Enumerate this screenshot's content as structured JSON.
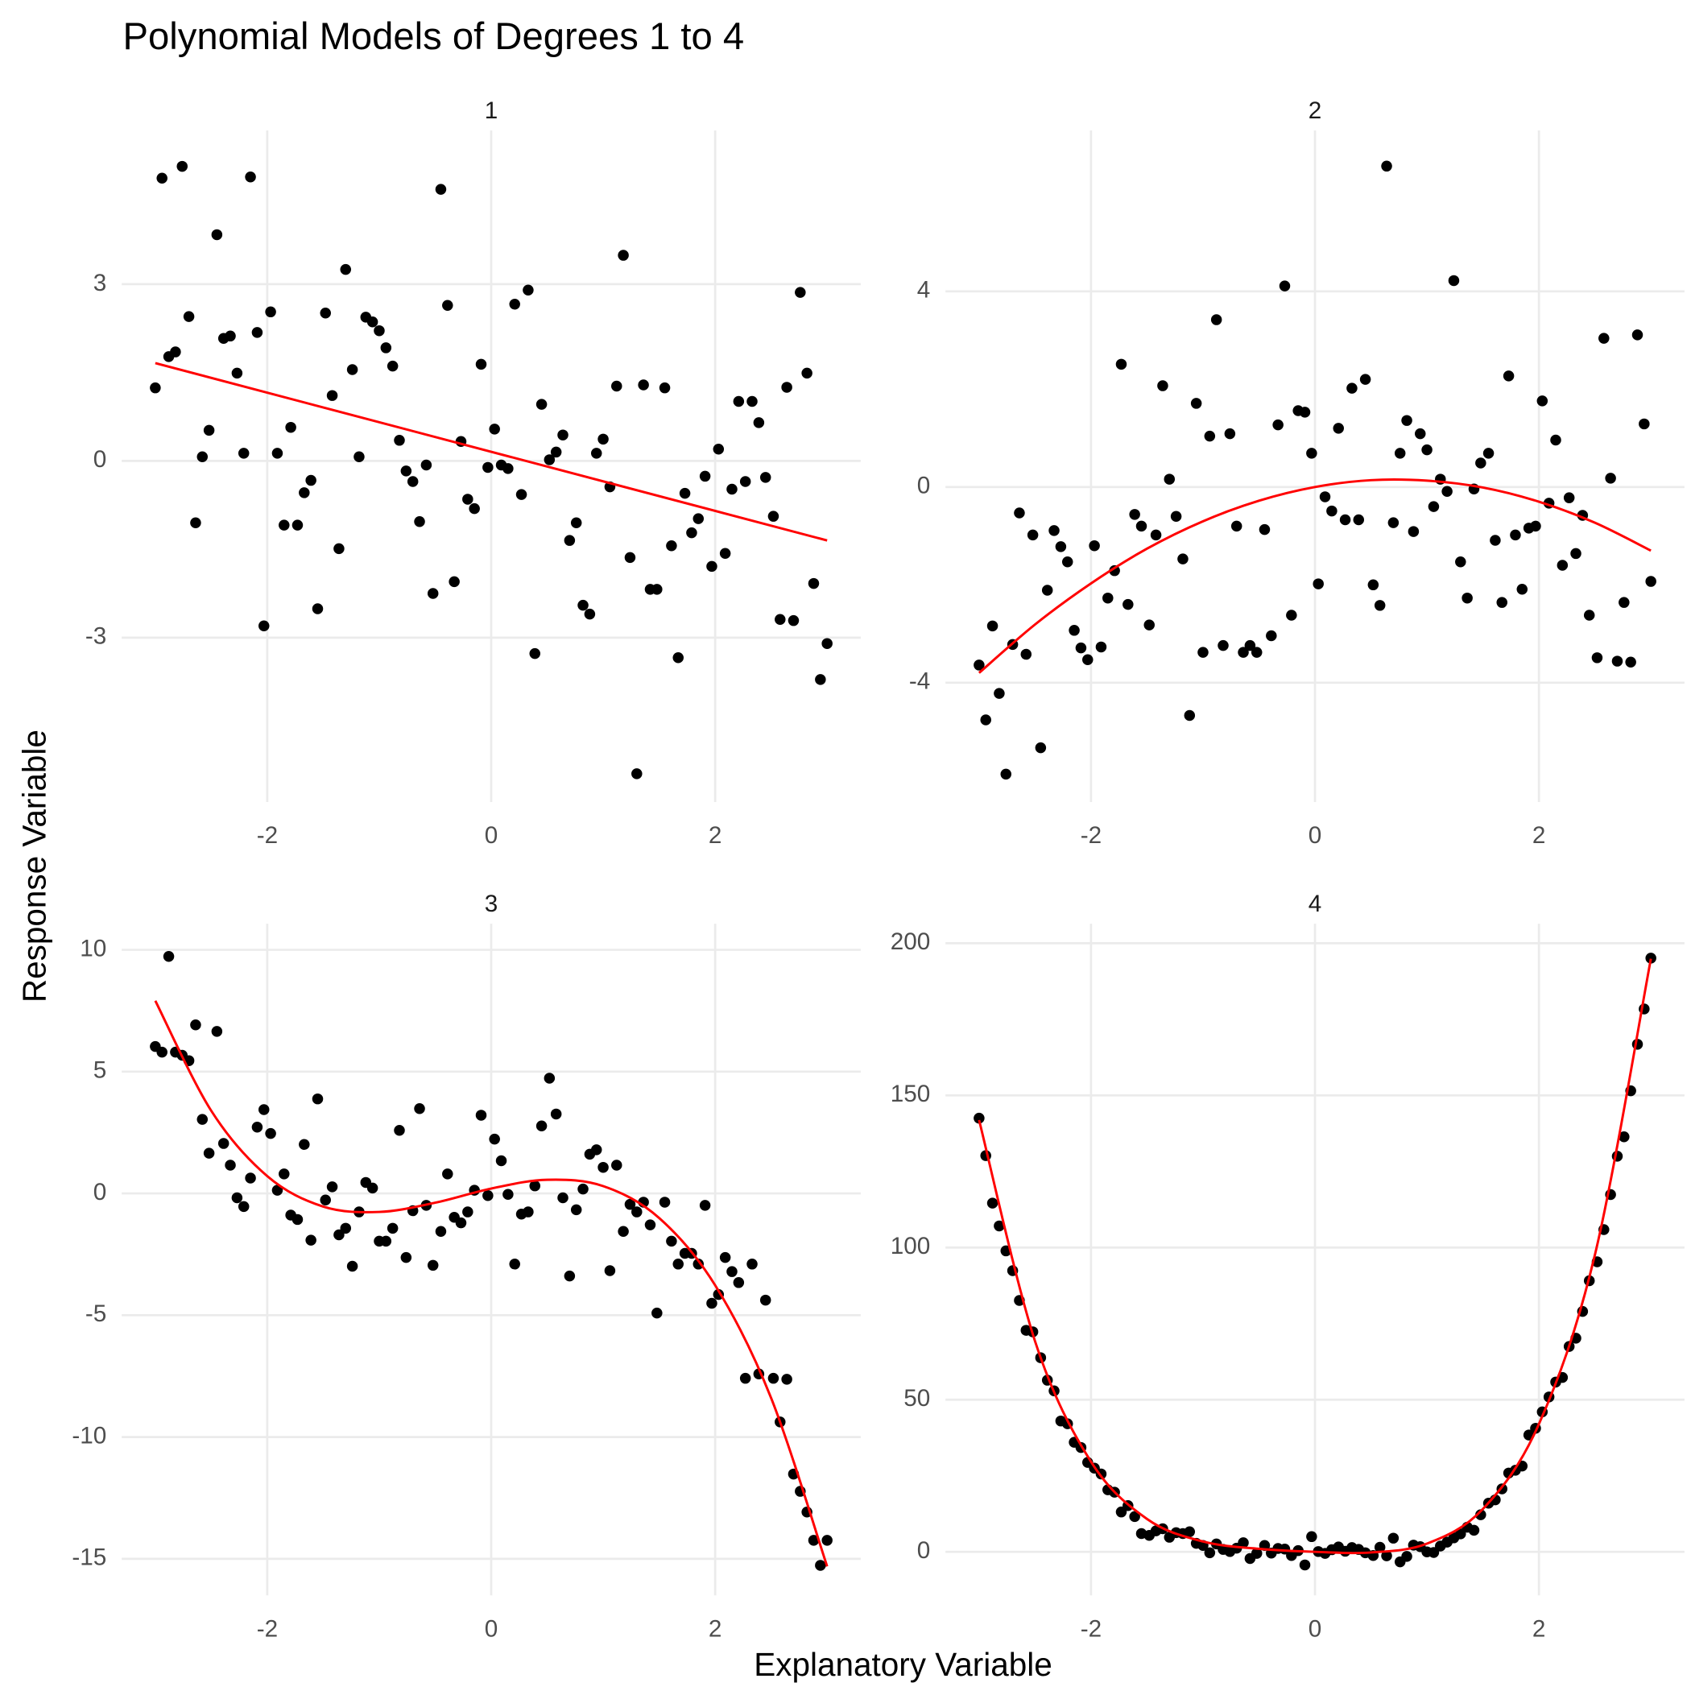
{
  "chart_data": {
    "type": "scatter",
    "title": "Polynomial Models of Degrees 1 to 4",
    "x_label": "Explanatory Variable",
    "y_label": "Response Variable",
    "grid": true,
    "xlim": [
      -3.3,
      3.3
    ],
    "xticks": [
      -2,
      0,
      2
    ],
    "x": [
      -3,
      -2.94,
      -2.88,
      -2.82,
      -2.76,
      -2.7,
      -2.64,
      -2.58,
      -2.52,
      -2.45,
      -2.39,
      -2.33,
      -2.27,
      -2.21,
      -2.15,
      -2.09,
      -2.03,
      -1.97,
      -1.91,
      -1.85,
      -1.79,
      -1.73,
      -1.67,
      -1.61,
      -1.55,
      -1.48,
      -1.42,
      -1.36,
      -1.3,
      -1.24,
      -1.18,
      -1.12,
      -1.06,
      -1,
      -0.94,
      -0.88,
      -0.82,
      -0.76,
      -0.7,
      -0.64,
      -0.58,
      -0.52,
      -0.45,
      -0.39,
      -0.33,
      -0.27,
      -0.21,
      -0.15,
      -0.09,
      -0.03,
      0.03,
      0.09,
      0.15,
      0.21,
      0.27,
      0.33,
      0.39,
      0.45,
      0.52,
      0.58,
      0.64,
      0.7,
      0.76,
      0.82,
      0.88,
      0.94,
      1,
      1.06,
      1.12,
      1.18,
      1.24,
      1.3,
      1.36,
      1.42,
      1.48,
      1.55,
      1.61,
      1.67,
      1.73,
      1.79,
      1.85,
      1.91,
      1.97,
      2.03,
      2.09,
      2.15,
      2.21,
      2.27,
      2.33,
      2.39,
      2.45,
      2.52,
      2.58,
      2.64,
      2.7,
      2.76,
      2.82,
      2.88,
      2.94,
      3
    ],
    "panels": [
      {
        "title": "1",
        "ylim": [
          -5.79,
          5.61
        ],
        "yticks": [
          -3,
          0,
          3
        ],
        "series": [
          {
            "type": "scatter",
            "color": "#000000",
            "values": [
              1.24,
              4.8,
              1.77,
              1.85,
              5.0,
              2.45,
              -1.05,
              0.07,
              0.52,
              3.84,
              2.08,
              2.12,
              1.49,
              0.13,
              4.82,
              2.18,
              -2.8,
              2.53,
              0.13,
              -1.09,
              0.57,
              -1.09,
              -0.54,
              -0.33,
              -2.51,
              2.51,
              1.11,
              -1.49,
              3.25,
              1.55,
              0.07,
              2.44,
              2.36,
              2.21,
              1.92,
              1.61,
              0.35,
              -0.17,
              -0.35,
              -1.03,
              -0.07,
              -2.25,
              4.61,
              2.64,
              -2.05,
              0.33,
              -0.65,
              -0.81,
              1.64,
              -0.11,
              0.54,
              -0.07,
              -0.13,
              2.66,
              -0.57,
              2.9,
              -3.27,
              0.96,
              0.02,
              0.15,
              0.44,
              -1.35,
              -1.05,
              -2.45,
              -2.6,
              0.13,
              0.37,
              -0.44,
              1.27,
              3.49,
              -1.64,
              -5.31,
              1.29,
              -2.18,
              -2.18,
              1.24,
              -1.44,
              -3.34,
              -0.55,
              -1.22,
              -0.98,
              -0.26,
              -1.79,
              0.2,
              -1.57,
              -0.48,
              1.01,
              -0.35,
              1.01,
              0.65,
              -0.28,
              -0.94,
              -2.69,
              1.25,
              -2.71,
              2.86,
              1.49,
              -2.08,
              -3.71,
              -3.1
            ]
          },
          {
            "type": "line",
            "color": "#ff0000",
            "x": [
              -3,
              3
            ],
            "values": [
              1.66,
              -1.35
            ]
          }
        ]
      },
      {
        "title": "2",
        "ylim": [
          -6.44,
          7.29
        ],
        "yticks": [
          -4,
          0,
          4
        ],
        "series": [
          {
            "type": "scatter",
            "color": "#000000",
            "values": [
              -3.64,
              -4.76,
              -2.84,
              -4.22,
              -5.87,
              -3.22,
              -0.53,
              -3.42,
              -0.98,
              -5.33,
              -2.11,
              -0.89,
              -1.22,
              -1.53,
              -2.93,
              -3.29,
              -3.53,
              -1.2,
              -3.27,
              -2.27,
              -1.71,
              2.51,
              -2.4,
              -0.56,
              -0.8,
              -2.82,
              -0.98,
              2.07,
              0.16,
              -0.6,
              -1.47,
              -4.67,
              1.71,
              -3.38,
              1.04,
              3.42,
              -3.24,
              1.09,
              -0.8,
              -3.38,
              -3.24,
              -3.38,
              -0.87,
              -3.04,
              1.27,
              4.11,
              -2.62,
              1.56,
              1.53,
              0.69,
              -1.98,
              -0.2,
              -0.49,
              1.2,
              -0.67,
              2.02,
              -0.67,
              2.2,
              -2.0,
              -2.42,
              6.56,
              -0.73,
              0.69,
              1.36,
              -0.91,
              1.09,
              0.76,
              -0.4,
              0.16,
              -0.09,
              4.22,
              -1.53,
              -2.27,
              -0.04,
              0.49,
              0.69,
              -1.09,
              -2.36,
              2.27,
              -0.98,
              -2.09,
              -0.84,
              -0.8,
              1.76,
              -0.33,
              0.96,
              -1.6,
              -0.22,
              -1.36,
              -0.58,
              -2.62,
              -3.49,
              3.04,
              0.18,
              -3.56,
              -2.36,
              -3.58,
              3.11,
              1.29,
              -1.93
            ]
          },
          {
            "type": "line",
            "color": "#ff0000",
            "x": [
              -3,
              -2.5,
              -2,
              -1.5,
              -1,
              -0.5,
              0,
              0.5,
              1,
              1.5,
              2,
              2.5,
              3
            ],
            "values": [
              -3.8,
              -2.81,
              -1.97,
              -1.26,
              -0.7,
              -0.28,
              0,
              0.14,
              0.13,
              -0.01,
              -0.3,
              -0.73,
              -1.3
            ]
          }
        ]
      },
      {
        "title": "3",
        "ylim": [
          -16.5,
          11.07
        ],
        "yticks": [
          -15,
          -10,
          -5,
          0,
          5,
          10
        ],
        "series": [
          {
            "type": "scatter",
            "color": "#000000",
            "values": [
              6.03,
              5.8,
              9.73,
              5.8,
              5.67,
              5.45,
              6.92,
              3.04,
              1.65,
              6.65,
              2.05,
              1.16,
              -0.18,
              -0.54,
              0.63,
              2.72,
              3.44,
              2.46,
              0.13,
              0.8,
              -0.89,
              -1.07,
              2.01,
              -1.92,
              3.88,
              -0.27,
              0.27,
              -1.7,
              -1.43,
              -2.99,
              -0.76,
              0.45,
              0.22,
              -1.96,
              -1.96,
              -1.43,
              2.59,
              -2.63,
              -0.71,
              3.48,
              -0.49,
              -2.95,
              -1.56,
              0.8,
              -0.98,
              -1.21,
              -0.76,
              0.13,
              3.21,
              -0.09,
              2.23,
              1.34,
              -0.04,
              -2.9,
              -0.85,
              -0.76,
              0.31,
              2.77,
              4.73,
              3.26,
              -0.18,
              -3.39,
              -0.67,
              0.18,
              1.61,
              1.79,
              1.07,
              -3.17,
              1.16,
              -1.56,
              -0.45,
              -0.76,
              -0.36,
              -1.29,
              -4.91,
              -0.36,
              -1.96,
              -2.9,
              -2.46,
              -2.46,
              -2.9,
              -0.49,
              -4.51,
              -4.15,
              -2.63,
              -3.21,
              -3.66,
              -7.59,
              -2.9,
              -7.41,
              -4.38,
              -7.59,
              -9.38,
              -7.63,
              -11.52,
              -12.23,
              -13.08,
              -14.24,
              -15.27,
              -14.24
            ]
          },
          {
            "type": "line",
            "color": "#ff0000",
            "x": [
              -3,
              -2.5,
              -2,
              -1.5,
              -1,
              -0.5,
              0,
              0.5,
              1,
              1.5,
              2,
              2.5,
              3
            ],
            "values": [
              7.91,
              3.39,
              0.71,
              -0.54,
              -0.76,
              -0.38,
              0.2,
              0.56,
              0.3,
              -1.01,
              -3.77,
              -8.4,
              -15.31
            ]
          }
        ]
      },
      {
        "title": "4",
        "ylim": [
          -14.3,
          206.4
        ],
        "yticks": [
          0,
          50,
          100,
          150,
          200
        ],
        "series": [
          {
            "type": "scatter",
            "color": "#000000",
            "values": [
              142.5,
              130.2,
              114.6,
              107.1,
              98.9,
              92.4,
              82.6,
              72.8,
              72.3,
              63.8,
              56.4,
              52.9,
              43.0,
              42.1,
              36.0,
              34.3,
              29.4,
              27.5,
              25.6,
              20.4,
              19.6,
              13.1,
              15.2,
              11.6,
              6.0,
              5.4,
              6.9,
              7.6,
              4.8,
              6.3,
              6.0,
              6.6,
              2.8,
              2.1,
              -0.3,
              2.6,
              0.8,
              0.1,
              1.2,
              3.0,
              -2.2,
              -0.5,
              2.1,
              -0.4,
              1.1,
              0.9,
              -1.2,
              0.4,
              -4.3,
              5.0,
              0.1,
              -0.5,
              0.7,
              1.6,
              0.2,
              1.4,
              0.8,
              -0.3,
              -1.2,
              1.5,
              -1.3,
              4.5,
              -3.3,
              -1.5,
              2.2,
              1.7,
              0.0,
              -0.2,
              1.9,
              3.2,
              4.6,
              5.9,
              8.1,
              7.1,
              12.2,
              16.0,
              17.1,
              20.7,
              25.9,
              26.8,
              28.2,
              38.4,
              40.6,
              46.0,
              50.9,
              55.8,
              57.3,
              67.5,
              70.2,
              79.0,
              89.1,
              95.3,
              105.9,
              117.4,
              130.0,
              136.4,
              151.5,
              166.8,
              178.4,
              195.1
            ]
          },
          {
            "type": "line",
            "color": "#ff0000",
            "x": [
              -3,
              -2.5,
              -2,
              -1.5,
              -1,
              -0.5,
              0,
              0.5,
              1,
              1.5,
              2,
              2.5,
              3
            ],
            "values": [
              141.9,
              69.2,
              29.6,
              10.8,
              3.4,
              1.0,
              0,
              -0.2,
              2.7,
              14.1,
              42.0,
              97.6,
              194.9
            ]
          }
        ]
      }
    ]
  }
}
